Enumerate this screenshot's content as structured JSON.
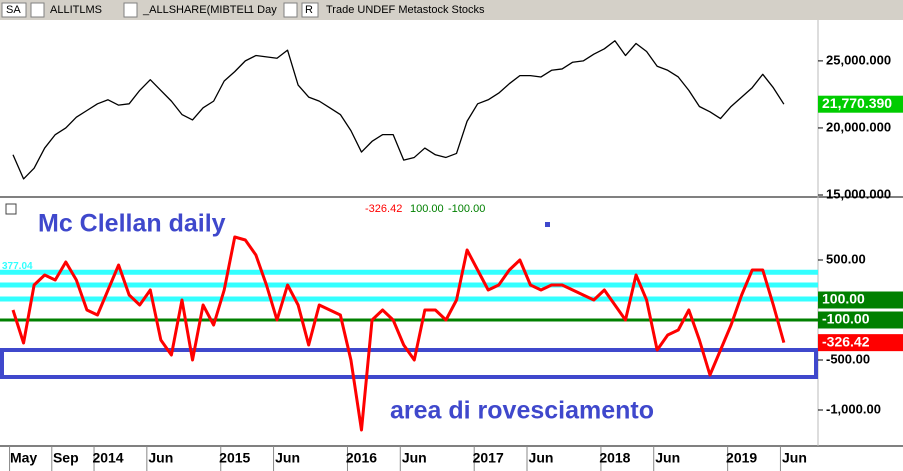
{
  "toolbar": {
    "symbol_box": "SA",
    "symbol": "ALLITLMS",
    "compare": "_ALLSHARE(MIBTEL",
    "interval": "1 Day",
    "mode": "R",
    "info": "Trade UNDEF Metastock Stocks"
  },
  "chart_data": [
    {
      "type": "line",
      "color": "#000000",
      "values": [
        18000,
        16200,
        17000,
        18500,
        19500,
        20000,
        20800,
        21300,
        21800,
        22100,
        21700,
        21800,
        22800,
        23600,
        22800,
        22000,
        21000,
        20600,
        21500,
        22000,
        23500,
        24200,
        25000,
        25400,
        25300,
        25200,
        25800,
        23200,
        22300,
        22000,
        21500,
        21000,
        19800,
        18200,
        19000,
        19500,
        19500,
        17600,
        17800,
        18500,
        18000,
        17800,
        18100,
        20500,
        21800,
        22100,
        22600,
        23300,
        23900,
        23900,
        23800,
        24300,
        24400,
        24900,
        25000,
        25500,
        25900,
        26500,
        25400,
        26300,
        25700,
        24600,
        24300,
        23800,
        22800,
        21600,
        21200,
        20700,
        21600,
        22300,
        23000,
        24000,
        23000,
        21770.39,
        null,
        null
      ],
      "last_value_label": "21,770.390",
      "last_value_color": "#00cc00",
      "ylim": [
        15000,
        27900
      ],
      "yticks": [
        {
          "value": 25000,
          "label": "25,000.000"
        },
        {
          "value": 20000,
          "label": "20,000.000"
        },
        {
          "value": 15000,
          "label": "15,000.000"
        }
      ]
    },
    {
      "type": "line",
      "title": "Mc Clellan daily",
      "annotation": "area di rovesciamento",
      "color": "#ff0000",
      "categories": [
        null,
        "May",
        null,
        null,
        null,
        "Sep",
        null,
        null,
        null,
        "2014",
        null,
        null,
        null,
        null,
        "Jun",
        null,
        null,
        null,
        null,
        null,
        null,
        "2015",
        null,
        null,
        null,
        null,
        "Jun",
        null,
        null,
        null,
        null,
        null,
        null,
        "2016",
        null,
        null,
        null,
        null,
        "Jun",
        null,
        null,
        null,
        null,
        null,
        null,
        "2017",
        null,
        null,
        null,
        null,
        "Jun",
        null,
        null,
        null,
        null,
        null,
        null,
        "2018",
        null,
        null,
        null,
        null,
        "Jun",
        null,
        null,
        null,
        null,
        null,
        null,
        "2019",
        null,
        null,
        null,
        null,
        "Jun",
        null
      ],
      "values": [
        0,
        -330,
        250,
        350,
        300,
        480,
        300,
        0,
        -50,
        200,
        450,
        150,
        50,
        200,
        -300,
        -450,
        100,
        -500,
        50,
        -150,
        200,
        730,
        700,
        550,
        250,
        -100,
        250,
        50,
        -350,
        50,
        0,
        -50,
        -500,
        -1200,
        -100,
        0,
        -100,
        -350,
        -500,
        0,
        0,
        -100,
        100,
        600,
        400,
        200,
        250,
        400,
        500,
        250,
        200,
        250,
        250,
        200,
        150,
        100,
        200,
        50,
        -100,
        350,
        100,
        -400,
        -250,
        -200,
        0,
        -300,
        -650,
        -400,
        -150,
        150,
        400,
        400,
        50,
        -326.42,
        null,
        null
      ],
      "last_value_label": "-326.42",
      "last_value_color": "#ff0000",
      "levels": [
        {
          "value": 100,
          "label": "100.00",
          "color": "#008000"
        },
        {
          "value": -100,
          "label": "-100.00",
          "color": "#008000"
        }
      ],
      "cyan_levels": [
        377.04,
        250,
        110
      ],
      "cyan_label": "377.04",
      "cyan_color": "#33ffff",
      "reversal_zone": [
        -400,
        -670
      ],
      "zone_color": "#3f48cc",
      "ylim": [
        -1350,
        1100
      ],
      "yticks": [
        {
          "value": 500,
          "label": "500.00"
        },
        {
          "value": -500,
          "label": "-500.00"
        },
        {
          "value": -1000,
          "label": "-1,000.00"
        }
      ]
    }
  ]
}
